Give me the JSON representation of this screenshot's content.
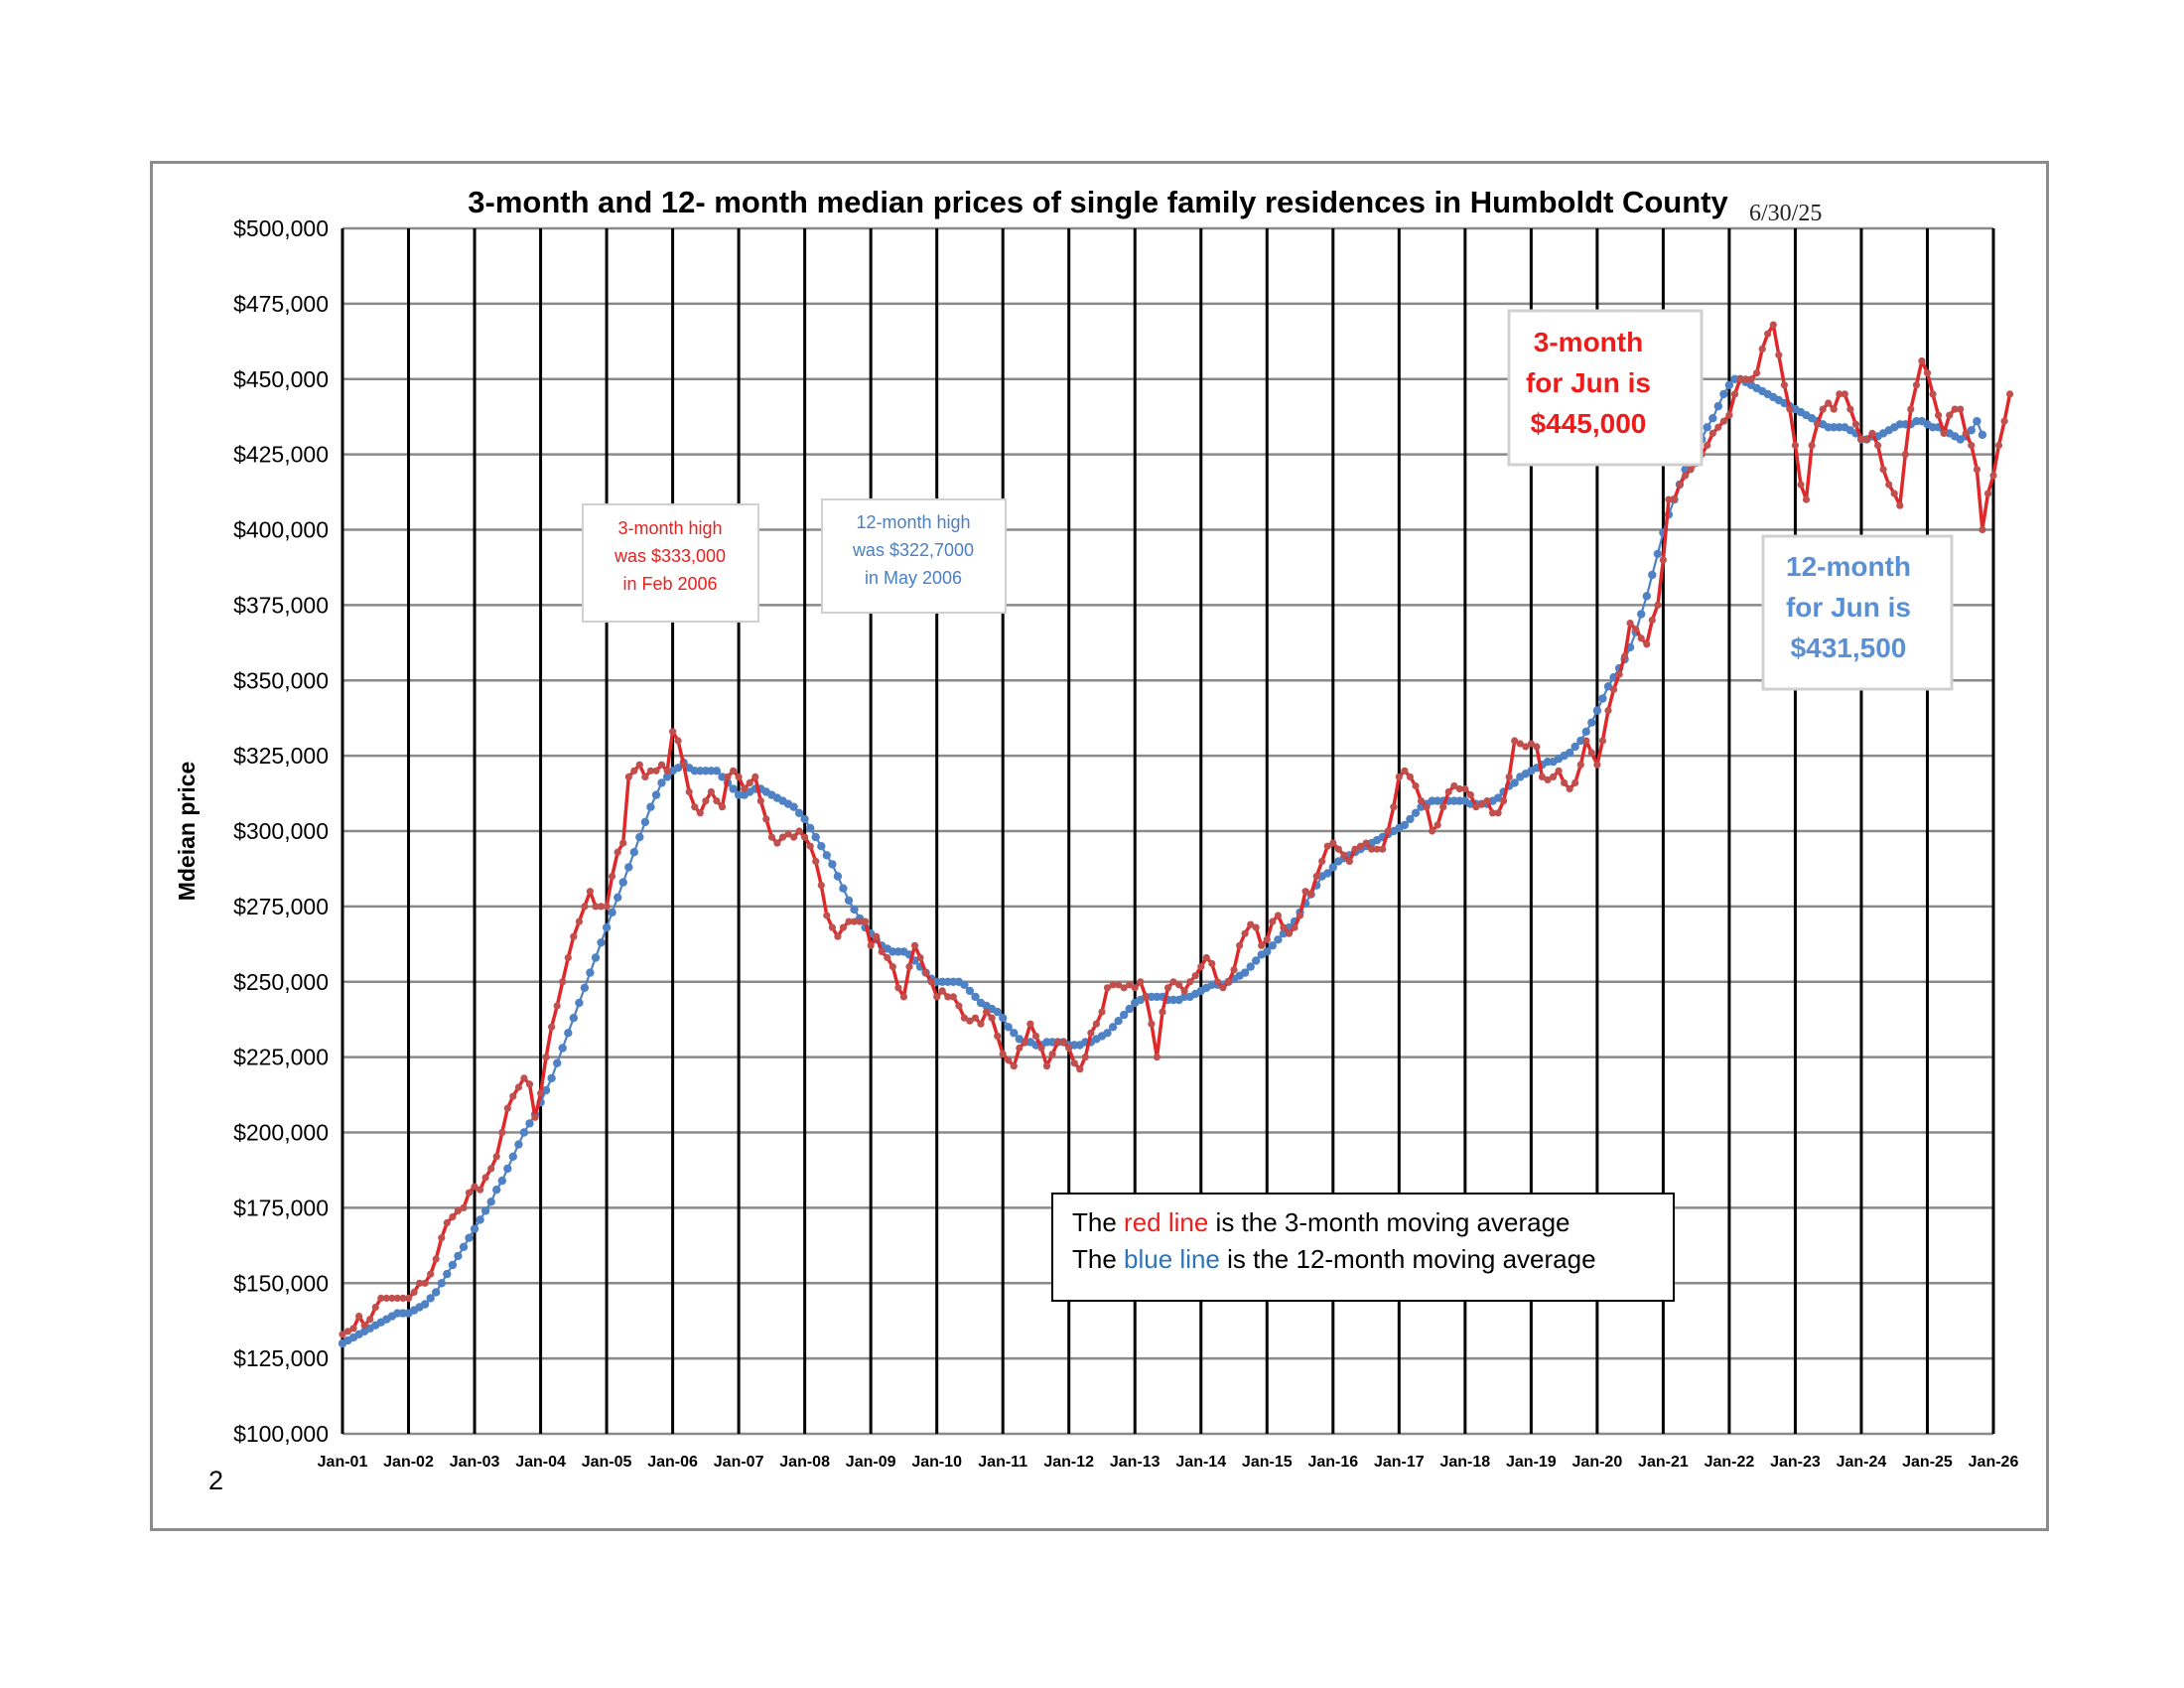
{
  "page": {
    "page_number": "2"
  },
  "chart_data": {
    "type": "line",
    "title": "3-month and 12- month median prices of single family residences in Humboldt County",
    "date_stamp": "6/30/25",
    "ylabel": "Mdeian price",
    "xlabel": "",
    "ylim": [
      100000,
      500000
    ],
    "y_ticks": [
      "$100,000",
      "$125,000",
      "$150,000",
      "$175,000",
      "$200,000",
      "$225,000",
      "$250,000",
      "$275,000",
      "$300,000",
      "$325,000",
      "$350,000",
      "$375,000",
      "$400,000",
      "$425,000",
      "$450,000",
      "$475,000",
      "$500,000"
    ],
    "x_ticks": [
      "Jan-01",
      "Jan-02",
      "Jan-03",
      "Jan-04",
      "Jan-05",
      "Jan-06",
      "Jan-07",
      "Jan-08",
      "Jan-09",
      "Jan-10",
      "Jan-11",
      "Jan-12",
      "Jan-13",
      "Jan-14",
      "Jan-15",
      "Jan-16",
      "Jan-17",
      "Jan-18",
      "Jan-19",
      "Jan-20",
      "Jan-21",
      "Jan-22",
      "Jan-23",
      "Jan-24",
      "Jan-25",
      "Jan-26"
    ],
    "x_start": "Jan-01",
    "grid": true,
    "series": [
      {
        "name": "3-month moving average",
        "color": "#e0282a",
        "values": [
          133000,
          134000,
          135000,
          139000,
          136000,
          138000,
          142000,
          145000,
          145000,
          145000,
          145000,
          145000,
          145000,
          147000,
          150000,
          150000,
          153000,
          158000,
          165000,
          170000,
          172000,
          174000,
          175000,
          180000,
          182000,
          181000,
          185000,
          188000,
          192000,
          200000,
          208000,
          212000,
          215000,
          218000,
          216000,
          205000,
          213000,
          225000,
          235000,
          242000,
          250000,
          258000,
          265000,
          270000,
          275000,
          280000,
          275000,
          275000,
          275000,
          285000,
          293000,
          296000,
          318000,
          320000,
          322000,
          318000,
          320000,
          320000,
          322000,
          320000,
          333000,
          330000,
          322000,
          313000,
          308000,
          306000,
          310000,
          313000,
          310000,
          308000,
          318000,
          320000,
          318000,
          314000,
          316000,
          318000,
          310000,
          304000,
          298000,
          296000,
          298000,
          299000,
          298000,
          300000,
          298000,
          295000,
          290000,
          282000,
          272000,
          268000,
          265000,
          268000,
          270000,
          270000,
          270000,
          270000,
          262000,
          265000,
          260000,
          258000,
          255000,
          248000,
          245000,
          255000,
          262000,
          258000,
          253000,
          250000,
          245000,
          247000,
          245000,
          245000,
          242000,
          238000,
          237000,
          238000,
          236000,
          240000,
          238000,
          232000,
          226000,
          224000,
          222000,
          228000,
          230000,
          236000,
          232000,
          228000,
          222000,
          226000,
          230000,
          230000,
          228000,
          223000,
          221000,
          225000,
          233000,
          236000,
          240000,
          248000,
          249000,
          249000,
          248000,
          249000,
          248000,
          250000,
          245000,
          236000,
          225000,
          240000,
          248000,
          250000,
          249000,
          247000,
          250000,
          252000,
          255000,
          258000,
          256000,
          250000,
          248000,
          250000,
          254000,
          262000,
          266000,
          269000,
          268000,
          262000,
          264000,
          270000,
          272000,
          268000,
          266000,
          268000,
          272000,
          280000,
          279000,
          285000,
          290000,
          295000,
          296000,
          294000,
          292000,
          290000,
          294000,
          295000,
          296000,
          294000,
          294000,
          294000,
          300000,
          308000,
          318000,
          320000,
          318000,
          315000,
          310000,
          308000,
          300000,
          302000,
          308000,
          313000,
          315000,
          314000,
          314000,
          312000,
          308000,
          309000,
          310000,
          306000,
          306000,
          310000,
          318000,
          330000,
          329000,
          328000,
          329000,
          328000,
          318000,
          317000,
          318000,
          320000,
          316000,
          314000,
          316000,
          322000,
          330000,
          326000,
          322000,
          330000,
          340000,
          347000,
          352000,
          358000,
          369000,
          367000,
          364000,
          362000,
          370000,
          375000,
          390000,
          410000,
          410000,
          415000,
          418000,
          420000,
          422000,
          425000,
          428000,
          432000,
          434000,
          436000,
          438000,
          445000,
          450000,
          450000,
          450000,
          452000,
          460000,
          465000,
          468000,
          458000,
          448000,
          440000,
          428000,
          415000,
          410000,
          428000,
          435000,
          440000,
          442000,
          440000,
          445000,
          445000,
          440000,
          435000,
          430000,
          430000,
          432000,
          428000,
          420000,
          415000,
          412000,
          408000,
          425000,
          440000,
          448000,
          456000,
          452000,
          445000,
          438000,
          432000,
          438000,
          440000,
          440000,
          432000,
          428000,
          420000,
          400000,
          412000,
          418000,
          428000,
          436000,
          445000
        ],
        "note": "3-month for Jun is $445,000",
        "high_note": [
          "3-month high",
          "was $333,000",
          "in Feb 2006"
        ]
      },
      {
        "name": "12-month moving average",
        "color": "#4f82c4",
        "values": [
          130000,
          131000,
          132000,
          133000,
          134000,
          135000,
          136000,
          137000,
          138000,
          139000,
          140000,
          140000,
          140000,
          141000,
          142000,
          143000,
          145000,
          147000,
          150000,
          153000,
          156000,
          159000,
          162000,
          165000,
          168000,
          171000,
          174000,
          177000,
          181000,
          184000,
          188000,
          192000,
          196000,
          200000,
          203000,
          206000,
          210000,
          214000,
          218000,
          223000,
          228000,
          233000,
          238000,
          243000,
          248000,
          253000,
          258000,
          263000,
          268000,
          273000,
          278000,
          283000,
          288000,
          293000,
          298000,
          303000,
          308000,
          312000,
          316000,
          318000,
          320000,
          321000,
          322700,
          321000,
          320000,
          320000,
          320000,
          320000,
          320000,
          318000,
          316000,
          314000,
          312000,
          312000,
          313000,
          314000,
          314000,
          313000,
          312000,
          311000,
          310000,
          309000,
          308000,
          306000,
          304000,
          301000,
          298000,
          295000,
          292000,
          289000,
          285000,
          281000,
          277000,
          274000,
          271000,
          268000,
          266000,
          264000,
          262000,
          261000,
          260000,
          260000,
          260000,
          259000,
          257000,
          255000,
          253000,
          251000,
          250000,
          250000,
          250000,
          250000,
          250000,
          249000,
          247000,
          245000,
          243000,
          242000,
          241000,
          240000,
          238000,
          235000,
          233000,
          231000,
          230000,
          230000,
          229000,
          229000,
          230000,
          230000,
          230000,
          230000,
          229000,
          229000,
          229000,
          230000,
          230000,
          231000,
          232000,
          233000,
          235000,
          237000,
          239000,
          241000,
          243000,
          244000,
          245000,
          245000,
          245000,
          245000,
          244000,
          244000,
          244000,
          245000,
          245000,
          246000,
          247000,
          248000,
          249000,
          249000,
          249000,
          250000,
          251000,
          252000,
          253000,
          255000,
          257000,
          259000,
          260000,
          262000,
          264000,
          266000,
          268000,
          270000,
          273000,
          276000,
          279000,
          282000,
          285000,
          286000,
          288000,
          290000,
          291000,
          292000,
          293000,
          294000,
          295000,
          296000,
          297000,
          298000,
          299000,
          300000,
          301000,
          302000,
          304000,
          306000,
          308000,
          309000,
          310000,
          310000,
          310000,
          310000,
          310000,
          310000,
          310000,
          309000,
          309000,
          309000,
          309000,
          310000,
          311000,
          313000,
          315000,
          316000,
          318000,
          319000,
          320000,
          321000,
          322000,
          323000,
          323000,
          324000,
          325000,
          326000,
          328000,
          330000,
          333000,
          336000,
          340000,
          344000,
          348000,
          351000,
          354000,
          357000,
          361000,
          366000,
          372000,
          378000,
          385000,
          392000,
          399000,
          405000,
          410000,
          415000,
          420000,
          423000,
          426000,
          430000,
          434000,
          437000,
          441000,
          445000,
          448000,
          450000,
          450000,
          449000,
          448000,
          447000,
          446000,
          445000,
          444000,
          443000,
          442000,
          441000,
          440000,
          439000,
          438000,
          437000,
          436000,
          435000,
          434000,
          434000,
          434000,
          434000,
          433000,
          432000,
          430000,
          430000,
          431000,
          431000,
          432000,
          433000,
          434000,
          435000,
          435000,
          435000,
          436000,
          436000,
          435000,
          434000,
          434000,
          433000,
          432000,
          431000,
          430000,
          431000,
          433000,
          436000,
          431500
        ],
        "note": "12-month for Jun is $431,500",
        "high_note": [
          "12-month high",
          "was $322,7000",
          "in May 2006"
        ]
      }
    ],
    "legend": {
      "placement": "bottom-center",
      "line1": {
        "pre": "The ",
        "colored": "red line",
        "post": " is the 3-month moving average",
        "color": "#e8201e"
      },
      "line2": {
        "pre": "The ",
        "colored": "blue line",
        "post": " is the 12-month moving average",
        "color": "#2e75b6"
      }
    }
  }
}
